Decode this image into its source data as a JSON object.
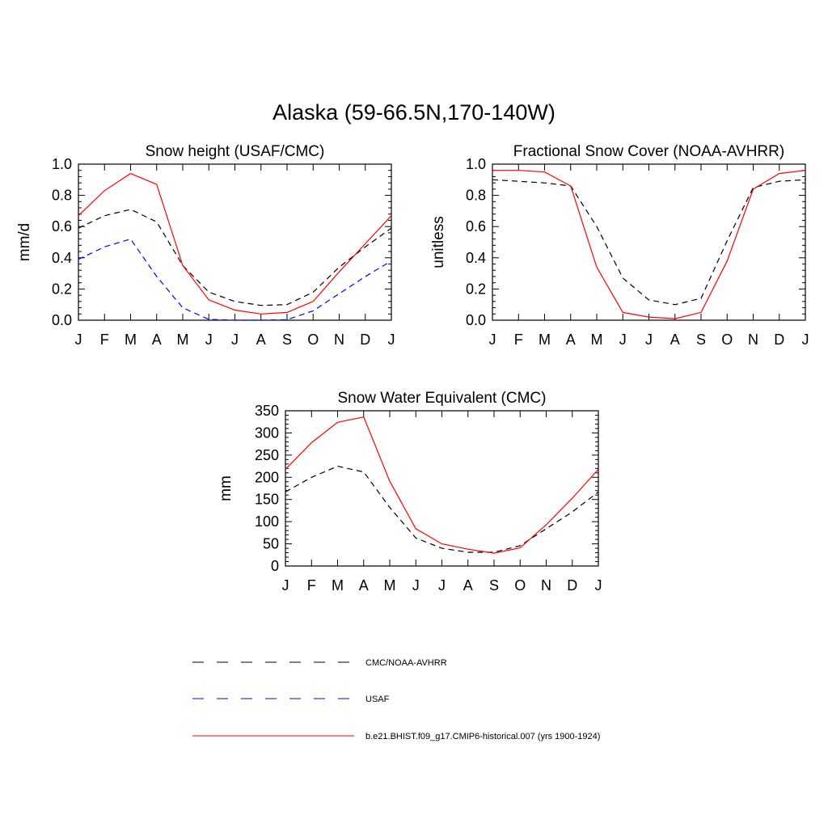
{
  "main_title": "Alaska (59-66.5N,170-140W)",
  "colors": {
    "cmc": "#000000",
    "usaf": "#0000ff",
    "model": "#ff0000"
  },
  "legend": [
    {
      "label": "CMC/NOAA-AVHRR",
      "color": "#000000",
      "style": "dashed"
    },
    {
      "label": "USAF",
      "color": "#0000ff",
      "style": "dashed"
    },
    {
      "label": "b.e21.BHIST.f09_g17.CMIP6-historical.007 (yrs 1900-1924)",
      "color": "#ff0000",
      "style": "solid"
    }
  ],
  "chart_data": [
    {
      "type": "line",
      "title": "Snow height (USAF/CMC)",
      "xlabel": "",
      "ylabel": "mm/d",
      "categories": [
        "J",
        "F",
        "M",
        "A",
        "M",
        "J",
        "J",
        "A",
        "S",
        "O",
        "N",
        "D",
        "J"
      ],
      "ylim": [
        0,
        1.0
      ],
      "yticks": [
        "0.0",
        "0.2",
        "0.4",
        "0.6",
        "0.8",
        "1.0"
      ],
      "series": [
        {
          "key": "cmc",
          "color": "#000000",
          "style": "dashed",
          "values": [
            0.59,
            0.67,
            0.71,
            0.63,
            0.35,
            0.18,
            0.12,
            0.095,
            0.1,
            0.18,
            0.34,
            0.47,
            0.59
          ]
        },
        {
          "key": "usaf",
          "color": "#0000ff",
          "style": "dashed",
          "values": [
            0.39,
            0.47,
            0.52,
            0.28,
            0.08,
            0.005,
            0.0,
            0.0,
            0.003,
            0.06,
            0.17,
            0.28,
            0.38
          ]
        },
        {
          "key": "model",
          "color": "#ff0000",
          "style": "solid",
          "values": [
            0.67,
            0.83,
            0.94,
            0.87,
            0.35,
            0.13,
            0.065,
            0.04,
            0.05,
            0.12,
            0.31,
            0.49,
            0.67
          ]
        }
      ]
    },
    {
      "type": "line",
      "title": "Fractional Snow Cover (NOAA-AVHRR)",
      "xlabel": "",
      "ylabel": "unitless",
      "categories": [
        "J",
        "F",
        "M",
        "A",
        "M",
        "J",
        "J",
        "A",
        "S",
        "O",
        "N",
        "D",
        "J"
      ],
      "ylim": [
        0,
        1.0
      ],
      "yticks": [
        "0.0",
        "0.2",
        "0.4",
        "0.6",
        "0.8",
        "1.0"
      ],
      "series": [
        {
          "key": "cmc",
          "color": "#000000",
          "style": "dashed",
          "values": [
            0.9,
            0.89,
            0.88,
            0.86,
            0.6,
            0.27,
            0.13,
            0.1,
            0.14,
            0.51,
            0.85,
            0.89,
            0.9
          ]
        },
        {
          "key": "model",
          "color": "#ff0000",
          "style": "solid",
          "values": [
            0.96,
            0.96,
            0.95,
            0.86,
            0.34,
            0.05,
            0.02,
            0.01,
            0.05,
            0.38,
            0.84,
            0.94,
            0.96
          ]
        }
      ]
    },
    {
      "type": "line",
      "title": "Snow Water Equivalent (CMC)",
      "xlabel": "",
      "ylabel": "mm",
      "categories": [
        "J",
        "F",
        "M",
        "A",
        "M",
        "J",
        "J",
        "A",
        "S",
        "O",
        "N",
        "D",
        "J"
      ],
      "ylim": [
        0,
        350
      ],
      "yticks": [
        "0",
        "50",
        "100",
        "150",
        "200",
        "250",
        "300",
        "350"
      ],
      "series": [
        {
          "key": "cmc",
          "color": "#000000",
          "style": "dashed",
          "values": [
            167,
            200,
            225,
            212,
            132,
            63,
            40,
            31,
            31,
            46,
            84,
            122,
            167
          ]
        },
        {
          "key": "model",
          "color": "#ff0000",
          "style": "solid",
          "values": [
            218,
            278,
            324,
            336,
            191,
            84,
            50,
            38,
            29,
            41,
            93,
            153,
            218
          ]
        }
      ]
    }
  ]
}
